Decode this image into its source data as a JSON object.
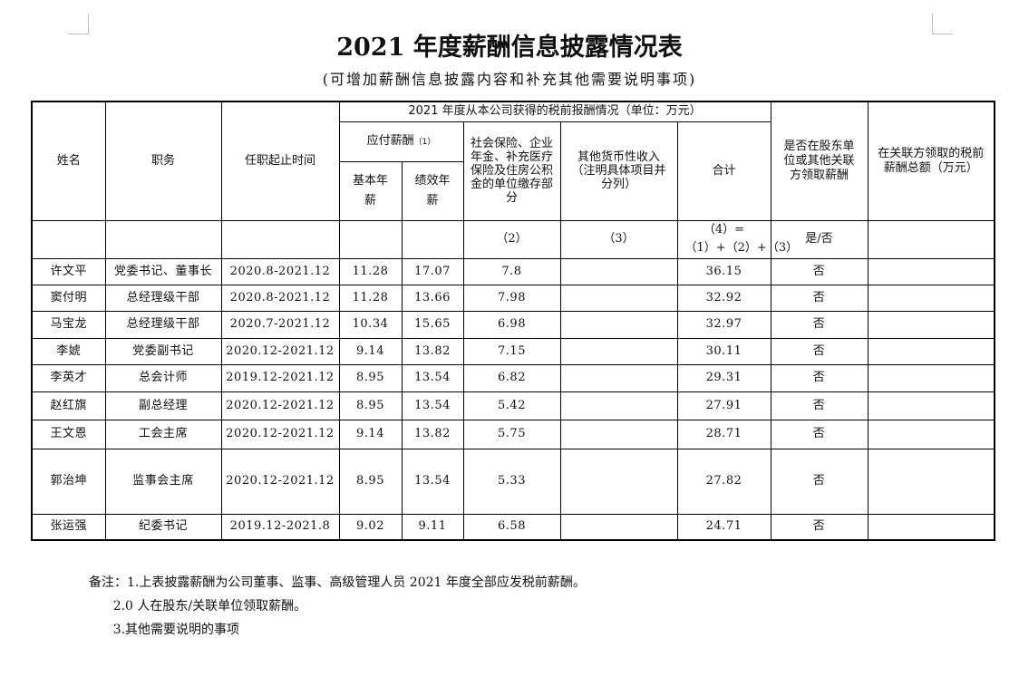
{
  "title": "2021 年度薪酬信息披露情况表",
  "subtitle": "(可增加薪酬信息披露内容和补充其他需要说明事项)",
  "headers": {
    "name": "姓名",
    "position": "职务",
    "term": "任职起止时间",
    "group": "2021 年度从本公司获得的税前报酬情况（单位：万元）",
    "payable": "应付薪酬",
    "payable_code": "（1）",
    "base": "基本年薪",
    "performance": "绩效年薪",
    "social": "社会保险、企业年金、补充医疗保险及住房公积金的单位缴存部分",
    "other": "其他货币性收入（注明具体项目并分列）",
    "total": "合计",
    "shareholder": "是否在股东单位或其他关联方领取薪酬",
    "related": "在关联方领取的税前薪酬总额（万元）",
    "code_social": "（2）",
    "code_other": "（3）",
    "code_total": "（4）=（1）+（2）+（3）",
    "code_yesno": "是/否"
  },
  "rows": [
    {
      "name": "许文平",
      "position": "党委书记、董事长",
      "term": "2020.8-2021.12",
      "base": "11.28",
      "perf": "17.07",
      "social": "7.8",
      "other": "",
      "total": "36.15",
      "sh": "否",
      "rel": ""
    },
    {
      "name": "窦付明",
      "position": "总经理级干部",
      "term": "2020.8-2021.12",
      "base": "11.28",
      "perf": "13.66",
      "social": "7.98",
      "other": "",
      "total": "32.92",
      "sh": "否",
      "rel": ""
    },
    {
      "name": "马宝龙",
      "position": "总经理级干部",
      "term": "2020.7-2021.12",
      "base": "10.34",
      "perf": "15.65",
      "social": "6.98",
      "other": "",
      "total": "32.97",
      "sh": "否",
      "rel": ""
    },
    {
      "name": "李婋",
      "position": "党委副书记",
      "term": "2020.12-2021.12",
      "base": "9.14",
      "perf": "13.82",
      "social": "7.15",
      "other": "",
      "total": "30.11",
      "sh": "否",
      "rel": ""
    },
    {
      "name": "李英才",
      "position": "总会计师",
      "term": "2019.12-2021.12",
      "base": "8.95",
      "perf": "13.54",
      "social": "6.82",
      "other": "",
      "total": "29.31",
      "sh": "否",
      "rel": ""
    },
    {
      "name": "赵红旗",
      "position": "副总经理",
      "term": "2020.12-2021.12",
      "base": "8.95",
      "perf": "13.54",
      "social": "5.42",
      "other": "",
      "total": "27.91",
      "sh": "否",
      "rel": ""
    },
    {
      "name": "王文恩",
      "position": "工会主席",
      "term": "2020.12-2021.12",
      "base": "9.14",
      "perf": "13.82",
      "social": "5.75",
      "other": "",
      "total": "28.71",
      "sh": "否",
      "rel": ""
    },
    {
      "name": "郭治坤",
      "position": "监事会主席",
      "term": "2020.12-2021.12",
      "base": "8.95",
      "perf": "13.54",
      "social": "5.33",
      "other": "",
      "total": "27.82",
      "sh": "否",
      "rel": ""
    },
    {
      "name": "张运强",
      "position": "纪委书记",
      "term": "2019.12-2021.8",
      "base": "9.02",
      "perf": "9.11",
      "social": "6.58",
      "other": "",
      "total": "24.71",
      "sh": "否",
      "rel": ""
    }
  ],
  "notes": [
    "备注：1.上表披露薪酬为公司董事、监事、高级管理人员 2021 年度全部应发税前薪酬。",
    "      2.0 人在股东/关联单位领取薪酬。",
    "      3.其他需要说明的事项"
  ]
}
